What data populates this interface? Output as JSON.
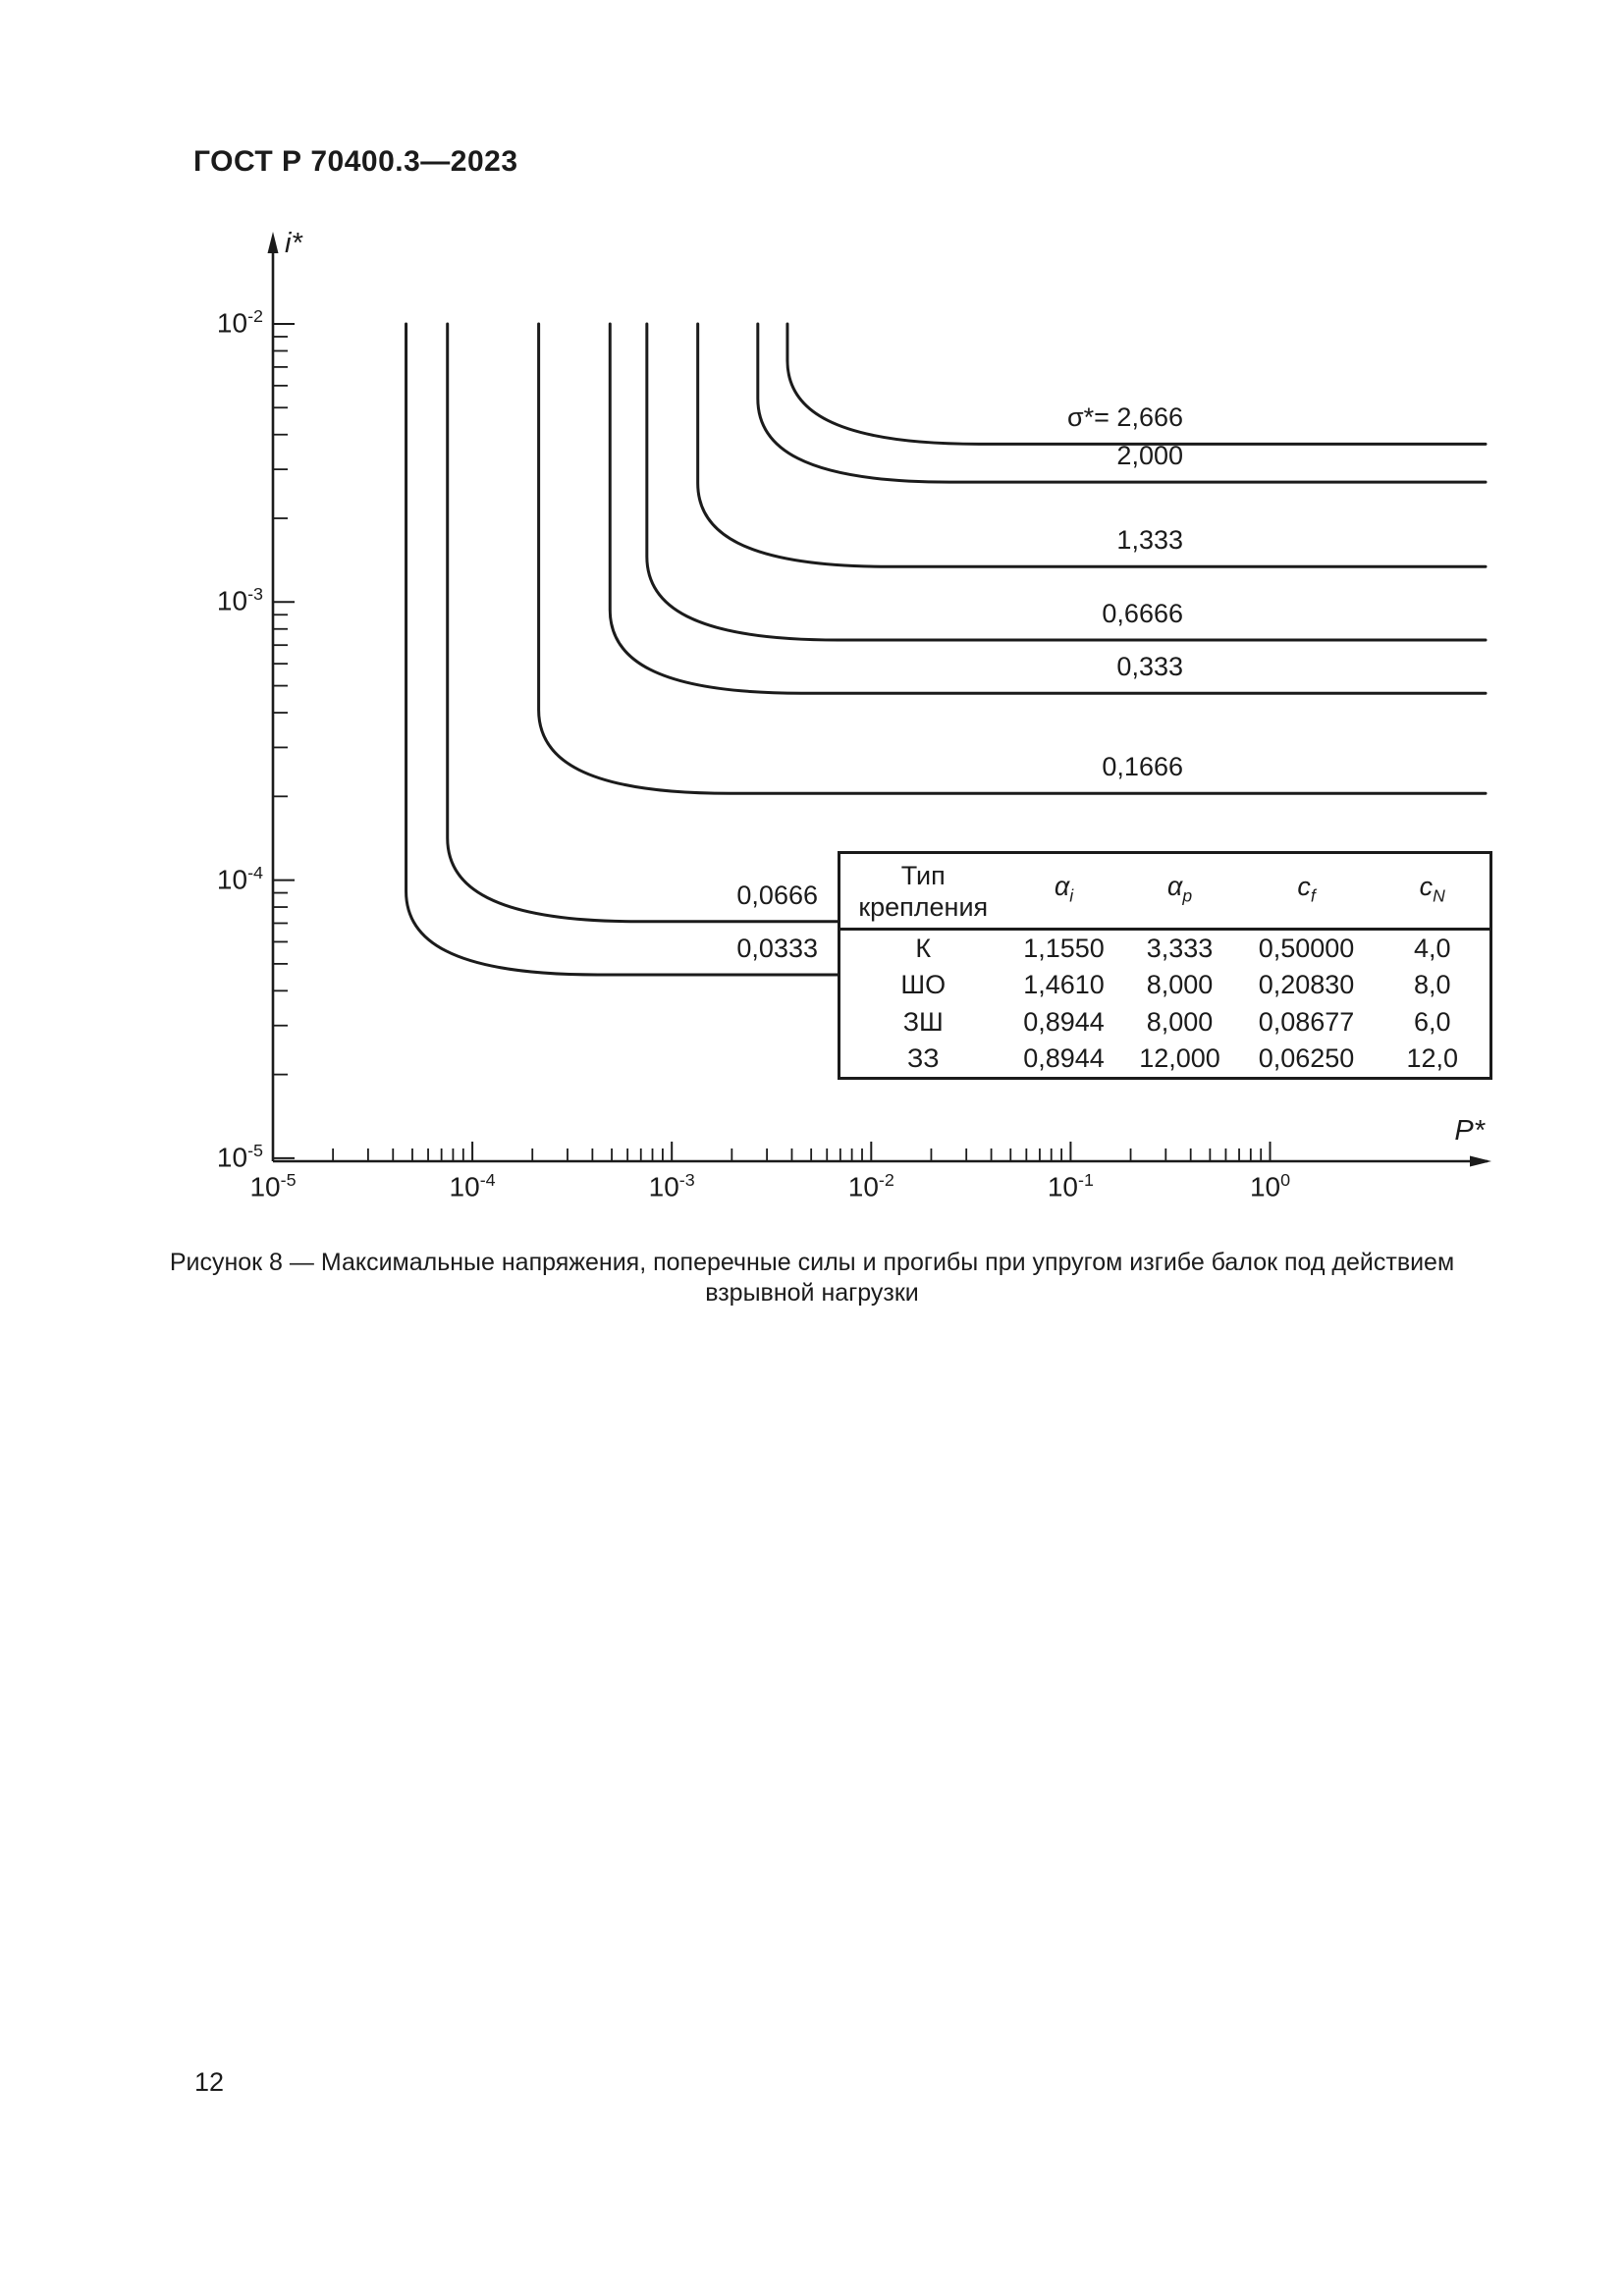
{
  "page": {
    "header": "ГОСТ Р 70400.3—2023",
    "page_number": "12"
  },
  "colors": {
    "ink": "#1b1b1b",
    "background": "#ffffff"
  },
  "figure_caption": {
    "lines": [
      "Рисунок 8 — Максимальные напряжения, поперечные силы и прогибы при упругом изгибе балок под действием",
      "взрывной нагрузки"
    ]
  },
  "chart_data": {
    "type": "line",
    "title": "",
    "xlabel": "P*",
    "ylabel": "i*",
    "x_axis": {
      "scale": "log",
      "range": [
        1e-05,
        1
      ],
      "tick_base": "10",
      "tick_exponents": [
        -5,
        -4,
        -3,
        -2,
        -1,
        0
      ]
    },
    "y_axis": {
      "scale": "log",
      "range": [
        1e-05,
        0.01
      ],
      "tick_base": "10",
      "tick_exponents": [
        -2,
        -3,
        -4,
        -5
      ]
    },
    "grid": false,
    "series_parameter": "σ*",
    "series": [
      {
        "label": "σ*= 2,666",
        "sigma": 2.666,
        "P_knee": 0.0038,
        "i_asymptote": 0.0037,
        "ends_at_table": false
      },
      {
        "label": "2,000",
        "sigma": 2.0,
        "P_knee": 0.0027,
        "i_asymptote": 0.0027,
        "ends_at_table": false
      },
      {
        "label": "1,333",
        "sigma": 1.333,
        "P_knee": 0.00135,
        "i_asymptote": 0.00134,
        "ends_at_table": false
      },
      {
        "label": "0,6666",
        "sigma": 0.6666,
        "P_knee": 0.00075,
        "i_asymptote": 0.00073,
        "ends_at_table": false
      },
      {
        "label": "0,333",
        "sigma": 0.333,
        "P_knee": 0.00049,
        "i_asymptote": 0.00047,
        "ends_at_table": false
      },
      {
        "label": "0,1666",
        "sigma": 0.1666,
        "P_knee": 0.000215,
        "i_asymptote": 0.000205,
        "ends_at_table": false
      },
      {
        "label": "0,0666",
        "sigma": 0.0666,
        "P_knee": 7.5e-05,
        "i_asymptote": 7.1e-05,
        "ends_at_table": true
      },
      {
        "label": "0,0333",
        "sigma": 0.0333,
        "P_knee": 4.65e-05,
        "i_asymptote": 4.57e-05,
        "ends_at_table": true
      }
    ]
  },
  "inset_table": {
    "col_headers": [
      {
        "text": "Тип крепления"
      },
      {
        "base": "α",
        "sub": "i"
      },
      {
        "base": "α",
        "sub": "p"
      },
      {
        "base": "c",
        "sub": "f"
      },
      {
        "base": "c",
        "sub": "N"
      }
    ],
    "rows": [
      [
        "К",
        "1,1550",
        "3,333",
        "0,50000",
        "4,0"
      ],
      [
        "ШО",
        "1,4610",
        "8,000",
        "0,20830",
        "8,0"
      ],
      [
        "ЗШ",
        "0,8944",
        "8,000",
        "0,08677",
        "6,0"
      ],
      [
        "ЗЗ",
        "0,8944",
        "12,000",
        "0,06250",
        "12,0"
      ]
    ]
  }
}
